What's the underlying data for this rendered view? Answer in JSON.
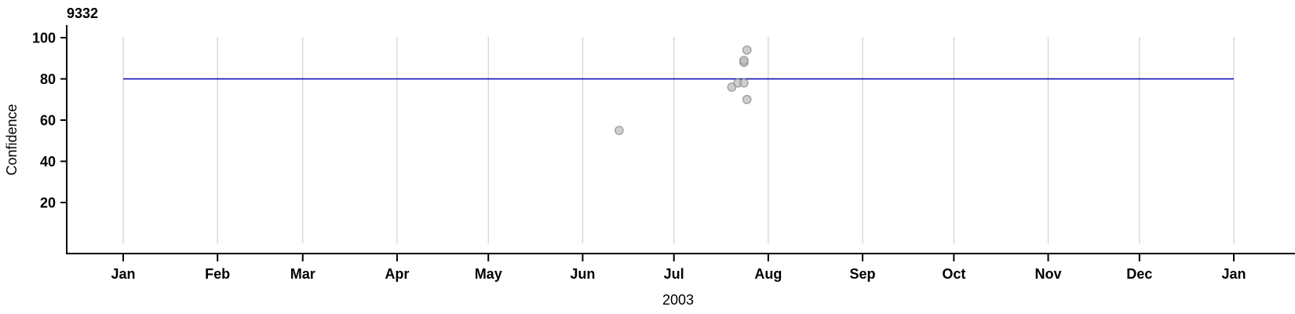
{
  "chart_data": {
    "type": "scatter",
    "title": "9332",
    "xlabel": "2003",
    "ylabel": "Confidence",
    "x_axis": {
      "tick_labels": [
        "Jan",
        "Feb",
        "Mar",
        "Apr",
        "May",
        "Jun",
        "Jul",
        "Aug",
        "Sep",
        "Oct",
        "Nov",
        "Dec",
        "Jan"
      ],
      "tick_days": [
        0,
        31,
        59,
        90,
        120,
        151,
        181,
        212,
        243,
        273,
        304,
        334,
        365
      ],
      "range_days": [
        0,
        365
      ],
      "grid": true,
      "grid_color": "#d4d4d4"
    },
    "y_axis": {
      "ticks": [
        20,
        40,
        60,
        80,
        100
      ],
      "lim": [
        -5,
        106
      ],
      "grid": false
    },
    "reference_line": {
      "value": 80,
      "color": "#0000b0"
    },
    "points": [
      {
        "date": "2003-06-13",
        "value": 55
      },
      {
        "date": "2003-07-20",
        "value": 76
      },
      {
        "date": "2003-07-22",
        "value": 78
      },
      {
        "date": "2003-07-24",
        "value": 78
      },
      {
        "date": "2003-07-24",
        "value": 88
      },
      {
        "date": "2003-07-24",
        "value": 89
      },
      {
        "date": "2003-07-25",
        "value": 70
      },
      {
        "date": "2003-07-25",
        "value": 94
      }
    ],
    "point_style": {
      "fill": "#bdbdbd",
      "stroke": "#8f8f8f",
      "fill_opacity": 0.75,
      "stroke_opacity": 0.9,
      "radius": 5.2
    },
    "legend": "none",
    "axis_color": "#000000"
  }
}
